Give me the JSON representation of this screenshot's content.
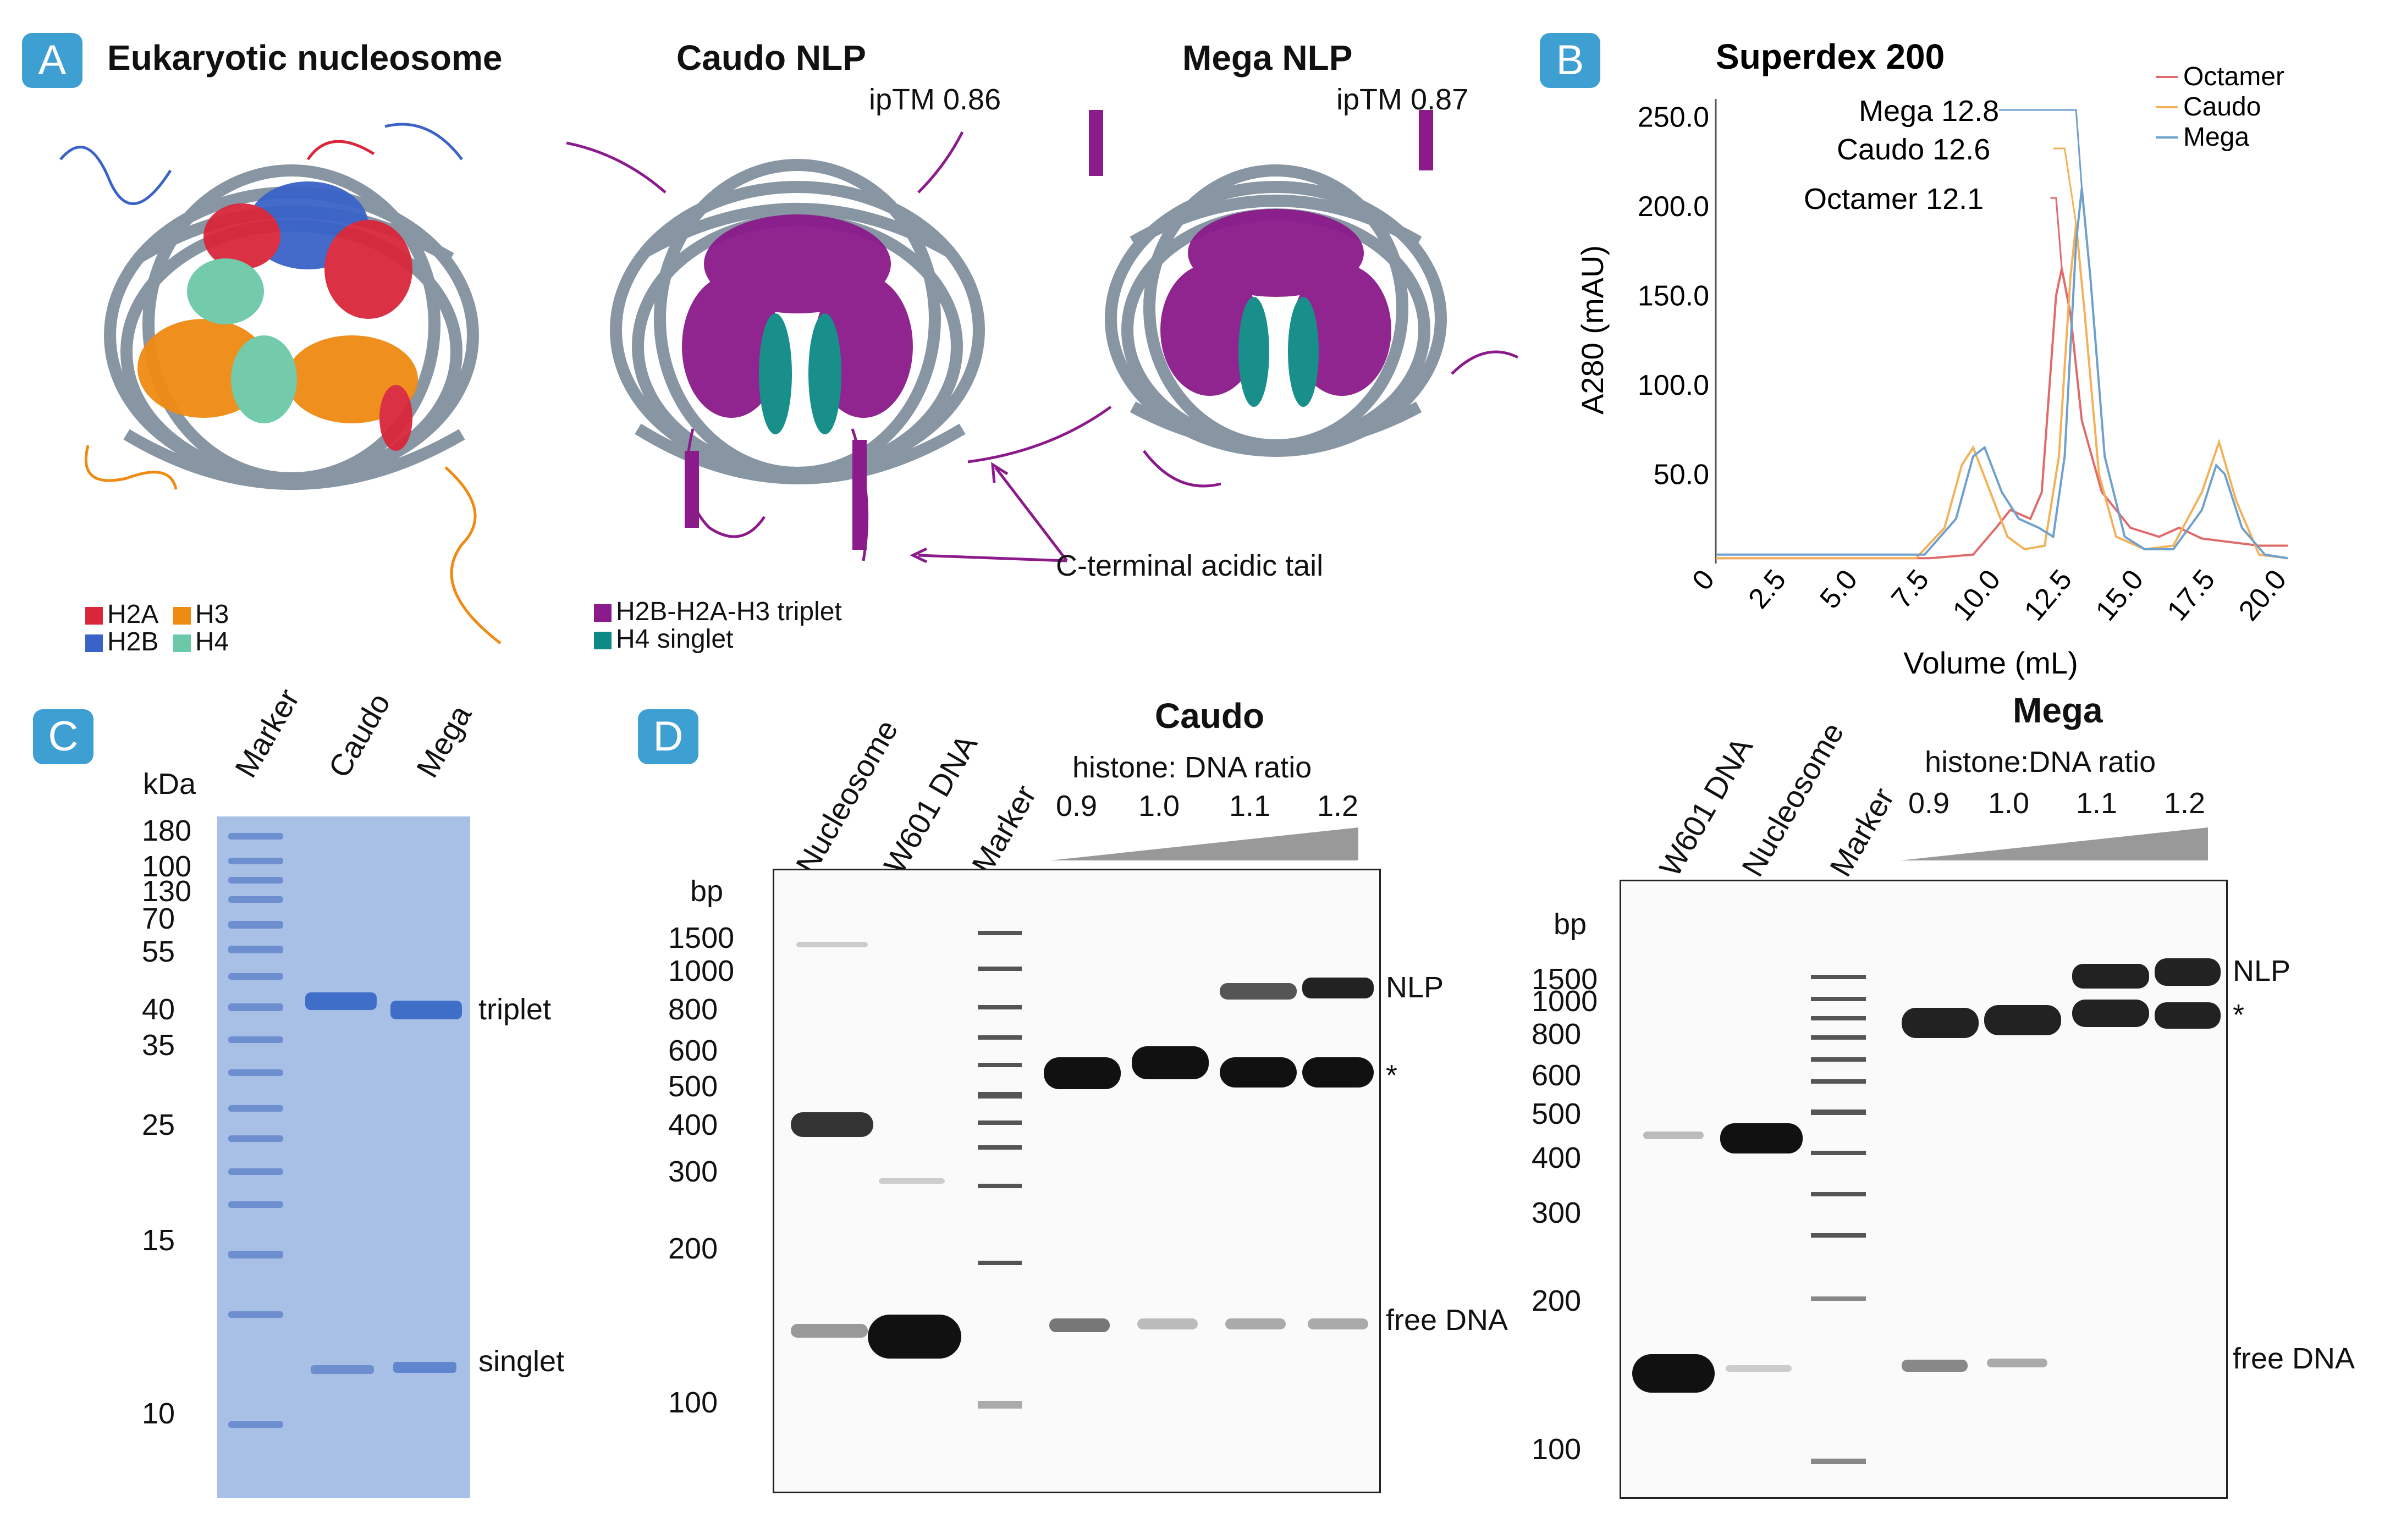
{
  "colors": {
    "badge": "#3e9fd3",
    "h2a": "#d9263a",
    "h2b": "#3a63c8",
    "h3": "#ef8a13",
    "h4": "#6cc9a8",
    "triplet": "#8b1a8b",
    "singlet": "#0d8a86",
    "dna": "#7c8a98",
    "octamer": "#e06a6a",
    "caudo": "#f2b15a",
    "mega": "#6fa0cc",
    "gel_stain": "#6d8fd0"
  },
  "panelA": {
    "badge": "A",
    "title_nucleosome": "Eukaryotic nucleosome",
    "title_caudo": "Caudo NLP",
    "title_mega": "Mega NLP",
    "iptm_caudo": "ipTM 0.86",
    "iptm_mega": "ipTM 0.87",
    "tail_label": "C-terminal acidic tail",
    "legend": {
      "h2a": "H2A",
      "h3": "H3",
      "h2b": "H2B",
      "h4": "H4",
      "triplet": "H2B-H2A-H3 triplet",
      "singlet": "H4 singlet"
    }
  },
  "panelB": {
    "badge": "B"
  },
  "panelC": {
    "badge": "C",
    "unit": "kDa",
    "lanes": [
      "Marker",
      "Caudo",
      "Mega"
    ],
    "ladder": [
      "180",
      "100",
      "130",
      "70",
      "55",
      "40",
      "35",
      "25",
      "15",
      "10"
    ],
    "band_triplet": "triplet",
    "band_singlet": "singlet"
  },
  "panelD": {
    "badge": "D",
    "caudo": {
      "title": "Caudo",
      "ratio_label": "histone: DNA ratio",
      "ratios": [
        "0.9",
        "1.0",
        "1.1",
        "1.2"
      ],
      "lanes": [
        "Nucleosome",
        "W601 DNA",
        "Marker"
      ],
      "unit": "bp",
      "ladder": [
        "1500",
        "1000",
        "800",
        "600",
        "500",
        "400",
        "300",
        "200",
        "100"
      ],
      "right_labels": {
        "nlp": "NLP",
        "star": "*",
        "free": "free DNA"
      }
    },
    "mega": {
      "title": "Mega",
      "ratio_label": "histone:DNA ratio",
      "ratios": [
        "0.9",
        "1.0",
        "1.1",
        "1.2"
      ],
      "lanes": [
        "W601 DNA",
        "Nucleosome",
        "Marker"
      ],
      "unit": "bp",
      "ladder": [
        "1500",
        "1000",
        "800",
        "600",
        "500",
        "400",
        "300",
        "200",
        "100"
      ],
      "right_labels": {
        "nlp": "NLP",
        "star": "*",
        "free": "free DNA"
      }
    }
  },
  "chart_data": {
    "type": "line",
    "title": "Superdex 200",
    "xlabel": "Volume (mL)",
    "ylabel": "A280 (mAU)",
    "xlim": [
      0,
      20.0
    ],
    "ylim": [
      0,
      260
    ],
    "xticks": [
      "0",
      "2.5",
      "5.0",
      "7.5",
      "10.0",
      "12.5",
      "15.0",
      "17.5",
      "20.0"
    ],
    "yticks": [
      "50.0",
      "100.0",
      "150.0",
      "200.0",
      "250.0"
    ],
    "legend_position": "top-right",
    "annotations": [
      "Mega 12.8",
      "Caudo 12.6",
      "Octamer 12.1"
    ],
    "series": [
      {
        "name": "Octamer",
        "x": [
          0,
          7.5,
          9.0,
          9.8,
          10.3,
          11.0,
          11.4,
          11.9,
          12.1,
          12.4,
          12.8,
          13.5,
          14.5,
          15.5,
          16.2,
          17.0,
          18.0,
          19.0,
          20.0
        ],
        "y": [
          3,
          3,
          5,
          20,
          30,
          25,
          40,
          150,
          165,
          140,
          80,
          40,
          20,
          15,
          20,
          14,
          12,
          10,
          10
        ]
      },
      {
        "name": "Caudo",
        "x": [
          0,
          7.0,
          8.0,
          8.6,
          9.0,
          9.6,
          10.2,
          10.8,
          11.5,
          12.0,
          12.4,
          12.6,
          12.9,
          13.4,
          14.0,
          15.0,
          16.0,
          17.0,
          17.6,
          18.2,
          19.0,
          20.0
        ],
        "y": [
          3,
          3,
          20,
          55,
          65,
          40,
          15,
          8,
          10,
          60,
          160,
          190,
          140,
          50,
          15,
          8,
          10,
          40,
          68,
          35,
          5,
          3
        ]
      },
      {
        "name": "Mega",
        "x": [
          0,
          7.3,
          8.4,
          9.0,
          9.4,
          10.0,
          10.6,
          11.3,
          11.8,
          12.2,
          12.6,
          12.8,
          13.1,
          13.6,
          14.3,
          15.0,
          16.0,
          17.0,
          17.5,
          17.8,
          18.4,
          19.2,
          20.0
        ],
        "y": [
          5,
          5,
          25,
          60,
          65,
          40,
          25,
          20,
          15,
          60,
          180,
          210,
          160,
          60,
          15,
          8,
          8,
          30,
          55,
          50,
          20,
          5,
          3
        ]
      }
    ]
  }
}
